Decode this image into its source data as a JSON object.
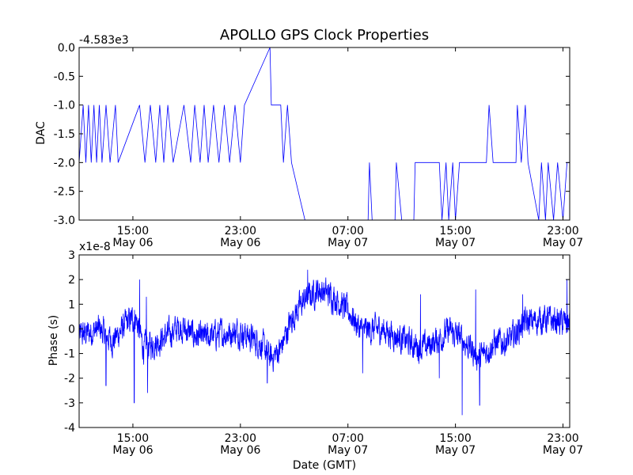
{
  "chart_data": [
    {
      "type": "line",
      "title": "APOLLO GPS Clock Properties",
      "ylabel": "DAC",
      "xlabel": "",
      "offset_label": "-4.583e3",
      "ylim": [
        -3.0,
        0.0
      ],
      "yticks": [
        "0.0",
        "-0.5",
        "-1.0",
        "-1.5",
        "-2.0",
        "-2.5",
        "-3.0"
      ],
      "yticks_values": [
        0.0,
        -0.5,
        -1.0,
        -1.5,
        -2.0,
        -2.5,
        -3.0
      ],
      "xticks": [
        {
          "time": "15:00",
          "date": "May 06"
        },
        {
          "time": "23:00",
          "date": "May 06"
        },
        {
          "time": "07:00",
          "date": "May 07"
        },
        {
          "time": "15:00",
          "date": "May 07"
        },
        {
          "time": "23:00",
          "date": "May 07"
        }
      ],
      "xticks_hours": [
        15,
        23,
        31,
        39,
        47
      ],
      "xlim_hours": [
        11.0,
        47.5
      ],
      "series": [
        {
          "name": "DAC",
          "color": "#0000ff",
          "segments": [
            {
              "x": 11.0,
              "y": -2.0
            },
            {
              "x": 11.3,
              "y": -1.0
            },
            {
              "x": 11.5,
              "y": -2.0
            },
            {
              "x": 11.7,
              "y": -1.0
            },
            {
              "x": 11.9,
              "y": -2.0
            },
            {
              "x": 12.1,
              "y": -1.0
            },
            {
              "x": 12.3,
              "y": -2.0
            },
            {
              "x": 12.5,
              "y": -1.0
            },
            {
              "x": 12.7,
              "y": -2.0
            },
            {
              "x": 13.0,
              "y": -1.0
            },
            {
              "x": 13.3,
              "y": -2.0
            },
            {
              "x": 13.7,
              "y": -1.0
            },
            {
              "x": 13.9,
              "y": -2.0
            },
            {
              "x": 15.5,
              "y": -1.0
            },
            {
              "x": 15.9,
              "y": -2.0
            },
            {
              "x": 16.3,
              "y": -1.0
            },
            {
              "x": 16.7,
              "y": -2.0
            },
            {
              "x": 17.0,
              "y": -1.0
            },
            {
              "x": 17.3,
              "y": -2.0
            },
            {
              "x": 17.6,
              "y": -1.0
            },
            {
              "x": 18.0,
              "y": -2.0
            },
            {
              "x": 18.8,
              "y": -1.0
            },
            {
              "x": 19.3,
              "y": -2.0
            },
            {
              "x": 19.6,
              "y": -1.0
            },
            {
              "x": 20.0,
              "y": -2.0
            },
            {
              "x": 20.3,
              "y": -1.0
            },
            {
              "x": 20.6,
              "y": -2.0
            },
            {
              "x": 21.0,
              "y": -1.0
            },
            {
              "x": 21.4,
              "y": -2.0
            },
            {
              "x": 21.8,
              "y": -1.0
            },
            {
              "x": 22.2,
              "y": -2.0
            },
            {
              "x": 22.6,
              "y": -1.0
            },
            {
              "x": 23.0,
              "y": -2.0
            },
            {
              "x": 23.3,
              "y": -1.0
            },
            {
              "x": 25.2,
              "y": 0.0
            },
            {
              "x": 25.3,
              "y": -1.0
            },
            {
              "x": 26.0,
              "y": -1.0
            },
            {
              "x": 26.2,
              "y": -2.0
            },
            {
              "x": 26.5,
              "y": -1.0
            },
            {
              "x": 26.8,
              "y": -2.0
            },
            {
              "x": 27.8,
              "y": -3.0
            },
            {
              "x": 32.5,
              "y": -3.0
            },
            {
              "x": 32.6,
              "y": -2.0
            },
            {
              "x": 32.8,
              "y": -3.0
            },
            {
              "x": 34.5,
              "y": -3.0
            },
            {
              "x": 34.6,
              "y": -2.0
            },
            {
              "x": 35.0,
              "y": -3.0
            },
            {
              "x": 35.9,
              "y": -3.0
            },
            {
              "x": 36.0,
              "y": -2.0
            },
            {
              "x": 37.8,
              "y": -2.0
            },
            {
              "x": 38.0,
              "y": -3.0
            },
            {
              "x": 38.3,
              "y": -2.0
            },
            {
              "x": 38.5,
              "y": -3.0
            },
            {
              "x": 38.8,
              "y": -2.0
            },
            {
              "x": 39.0,
              "y": -3.0
            },
            {
              "x": 39.3,
              "y": -2.0
            },
            {
              "x": 41.3,
              "y": -2.0
            },
            {
              "x": 41.5,
              "y": -1.0
            },
            {
              "x": 41.8,
              "y": -2.0
            },
            {
              "x": 43.5,
              "y": -2.0
            },
            {
              "x": 43.6,
              "y": -1.0
            },
            {
              "x": 43.9,
              "y": -2.0
            },
            {
              "x": 44.2,
              "y": -1.0
            },
            {
              "x": 44.4,
              "y": -2.0
            },
            {
              "x": 45.2,
              "y": -3.0
            },
            {
              "x": 45.4,
              "y": -2.0
            },
            {
              "x": 45.7,
              "y": -3.0
            },
            {
              "x": 45.9,
              "y": -2.0
            },
            {
              "x": 46.3,
              "y": -3.0
            },
            {
              "x": 46.6,
              "y": -2.0
            },
            {
              "x": 47.0,
              "y": -3.0
            },
            {
              "x": 47.3,
              "y": -2.0
            },
            {
              "x": 47.5,
              "y": -2.0
            }
          ]
        }
      ]
    },
    {
      "type": "line",
      "title": "",
      "ylabel": "Phase (s)",
      "xlabel": "Date (GMT)",
      "offset_label": "x1e-8",
      "ylim": [
        -4,
        3
      ],
      "yticks": [
        "3",
        "2",
        "1",
        "0",
        "-1",
        "-2",
        "-3",
        "-4"
      ],
      "yticks_values": [
        3,
        2,
        1,
        0,
        -1,
        -2,
        -3,
        -4
      ],
      "xticks": [
        {
          "time": "15:00",
          "date": "May 06"
        },
        {
          "time": "23:00",
          "date": "May 06"
        },
        {
          "time": "07:00",
          "date": "May 07"
        },
        {
          "time": "15:00",
          "date": "May 07"
        },
        {
          "time": "23:00",
          "date": "May 07"
        }
      ],
      "xticks_hours": [
        15,
        23,
        31,
        39,
        47
      ],
      "xlim_hours": [
        11.0,
        47.5
      ],
      "series": [
        {
          "name": "Phase",
          "color": "#0000ff",
          "trend": [
            {
              "x": 11.0,
              "y": -0.3
            },
            {
              "x": 12.5,
              "y": 0.0
            },
            {
              "x": 13.5,
              "y": -0.5
            },
            {
              "x": 14.5,
              "y": 0.2
            },
            {
              "x": 15.2,
              "y": 0.5
            },
            {
              "x": 15.8,
              "y": -0.8
            },
            {
              "x": 16.5,
              "y": -0.6
            },
            {
              "x": 17.5,
              "y": -0.3
            },
            {
              "x": 18.5,
              "y": 0.1
            },
            {
              "x": 20.0,
              "y": -0.4
            },
            {
              "x": 21.5,
              "y": -0.2
            },
            {
              "x": 23.0,
              "y": -0.1
            },
            {
              "x": 24.5,
              "y": -0.6
            },
            {
              "x": 25.3,
              "y": -1.2
            },
            {
              "x": 26.0,
              "y": -0.8
            },
            {
              "x": 26.8,
              "y": 0.4
            },
            {
              "x": 27.8,
              "y": 1.2
            },
            {
              "x": 28.8,
              "y": 1.6
            },
            {
              "x": 30.0,
              "y": 1.3
            },
            {
              "x": 31.2,
              "y": 0.6
            },
            {
              "x": 32.0,
              "y": -0.1
            },
            {
              "x": 33.5,
              "y": 0.0
            },
            {
              "x": 35.0,
              "y": -0.4
            },
            {
              "x": 36.5,
              "y": -0.8
            },
            {
              "x": 37.5,
              "y": -0.5
            },
            {
              "x": 38.5,
              "y": -0.1
            },
            {
              "x": 39.5,
              "y": -0.4
            },
            {
              "x": 40.8,
              "y": -1.2
            },
            {
              "x": 41.8,
              "y": -0.6
            },
            {
              "x": 43.0,
              "y": -0.5
            },
            {
              "x": 44.0,
              "y": 0.2
            },
            {
              "x": 45.5,
              "y": 0.4
            },
            {
              "x": 46.5,
              "y": 0.3
            },
            {
              "x": 47.5,
              "y": 0.2
            }
          ],
          "noise_amplitude": 0.45,
          "spikes": [
            {
              "x": 13.0,
              "y": -2.3
            },
            {
              "x": 15.1,
              "y": -3.0
            },
            {
              "x": 15.5,
              "y": 2.0
            },
            {
              "x": 16.1,
              "y": -2.6
            },
            {
              "x": 16.0,
              "y": 1.3
            },
            {
              "x": 25.0,
              "y": -2.2
            },
            {
              "x": 28.0,
              "y": 2.4
            },
            {
              "x": 32.1,
              "y": -1.8
            },
            {
              "x": 36.4,
              "y": 1.4
            },
            {
              "x": 37.8,
              "y": -2.0
            },
            {
              "x": 39.5,
              "y": -3.5
            },
            {
              "x": 40.8,
              "y": -3.1
            },
            {
              "x": 40.5,
              "y": 1.6
            },
            {
              "x": 44.0,
              "y": 1.4
            },
            {
              "x": 47.3,
              "y": 2.0
            }
          ]
        }
      ]
    }
  ]
}
